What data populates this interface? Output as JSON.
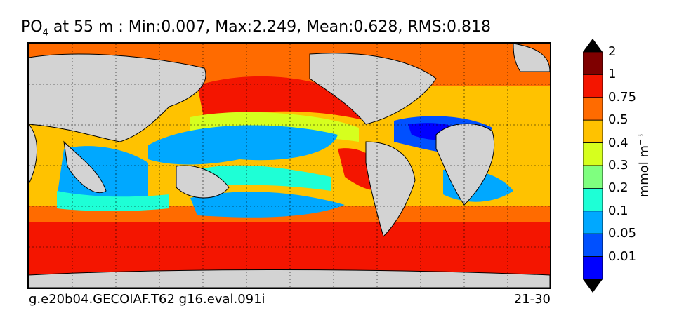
{
  "title": {
    "var": "PO",
    "sub": "4",
    "rest": " at 55 m : Min:0.007, Max:2.249, Mean:0.628, RMS:0.818"
  },
  "footer": {
    "left": "g.e20b04.GECOIAF.T62 g16.eval.091i",
    "right": "21-30"
  },
  "colorbar": {
    "unit_main": "mmol m",
    "unit_sup": "−3",
    "levels": [
      "0.01",
      "0.05",
      "0.1",
      "0.2",
      "0.3",
      "0.4",
      "0.5",
      "0.75",
      "1",
      "2"
    ],
    "colors": [
      "#00007f",
      "#0000ff",
      "#0050ff",
      "#00a8ff",
      "#1effd6",
      "#7fff7f",
      "#d6ff1e",
      "#ffc200",
      "#ff6b00",
      "#f41500",
      "#7f0000"
    ],
    "land_color": "#d3d3d3"
  }
}
